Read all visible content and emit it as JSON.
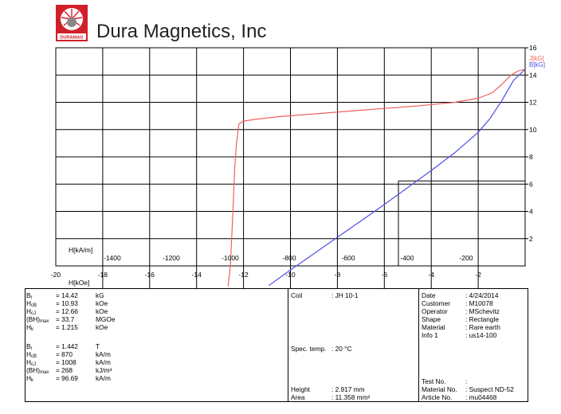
{
  "header": {
    "company": "Dura Magnetics, Inc",
    "logo_text": "DURAMAG",
    "logo_color": "#d0202a"
  },
  "chart_data": {
    "type": "line",
    "x_bottom": {
      "label": "H[kOe]",
      "range": [
        -20,
        0
      ],
      "ticks": [
        -20,
        -18,
        -16,
        -14,
        -12,
        -10,
        -8,
        -6,
        -4,
        -2
      ]
    },
    "x_top": {
      "label": "H[kA/m]",
      "ticks": [
        -1400,
        -1200,
        -1000,
        -800,
        -600,
        -400,
        -200
      ]
    },
    "y": {
      "range": [
        0,
        16
      ],
      "ticks": [
        2,
        4,
        6,
        8,
        10,
        12,
        14,
        16
      ]
    },
    "grid": true,
    "legend_position": "top-right",
    "series": [
      {
        "name": "J[kG]",
        "color": "#f06060",
        "x": [
          -12.66,
          -12.56,
          -12.45,
          -12.38,
          -12.3,
          -12.2,
          -12.0,
          -11.5,
          -10.5,
          -9.0,
          -7.5,
          -6.0,
          -4.5,
          -3.0,
          -2.0,
          -1.4,
          -1.0,
          -0.6,
          -0.3,
          0
        ],
        "y": [
          -1.5,
          0,
          4,
          7,
          9,
          10.4,
          10.62,
          10.75,
          10.95,
          11.15,
          11.35,
          11.55,
          11.75,
          12.0,
          12.3,
          12.7,
          13.3,
          14.0,
          14.3,
          14.42
        ]
      },
      {
        "name": "B[kG]",
        "color": "#5050e8",
        "x": [
          -10.93,
          -10.0,
          -9.0,
          -8.0,
          -7.0,
          -6.0,
          -5.0,
          -4.0,
          -3.0,
          -2.0,
          -1.5,
          -1.0,
          -0.5,
          0
        ],
        "y": [
          -1.45,
          -0.3,
          0.9,
          2.1,
          3.3,
          4.5,
          5.75,
          7.0,
          8.3,
          9.8,
          10.8,
          12.1,
          13.6,
          14.42
        ]
      }
    ],
    "annotations": [
      {
        "type": "bhmax-rectangle",
        "h": -5.4,
        "b": 6.23,
        "y_extent": 6.23,
        "x_extent": 0
      }
    ]
  },
  "params": {
    "kg_unit": {
      "Br": {
        "value": "= 14.42",
        "unit": "kG"
      },
      "HcB": {
        "value": "= 10.93",
        "unit": "kOe"
      },
      "HcJ": {
        "value": "= 12.66",
        "unit": "kOe"
      },
      "BHmax": {
        "value": "= 33.7",
        "unit": "MGOe"
      },
      "Hk": {
        "value": "= 1.215",
        "unit": "kOe"
      }
    },
    "si_unit": {
      "Br": {
        "value": "= 1.442",
        "unit": "T"
      },
      "HcB": {
        "value": "= 870",
        "unit": "kA/m"
      },
      "HcJ": {
        "value": "= 1008",
        "unit": "kA/m"
      },
      "BHmax": {
        "value": "= 268",
        "unit": "kJ/m³"
      },
      "Hk": {
        "value": "= 96.69",
        "unit": "kA/m"
      }
    }
  },
  "test": {
    "coil_label": "Coil",
    "coil_value": ": JH 10-1",
    "spec_temp_label": "Spec. temp.",
    "spec_temp_value": ": 20 °C",
    "height_label": "Height",
    "height_value": ": 2.917 mm",
    "area_label": "Area",
    "area_value": ": 11.358 mm²"
  },
  "info": {
    "date_label": "Date",
    "date_value": ": 4/24/2014",
    "customer_label": "Customer",
    "customer_value": ": M10078",
    "operator_label": "Operator",
    "operator_value": ": MSchevitz",
    "shape_label": "Shape",
    "shape_value": ": Rectangle",
    "material_label": "Material",
    "material_value": ": Rare earth",
    "info1_label": "Info 1",
    "info1_value": ": us14-100",
    "testno_label": "Test No.",
    "testno_value": ":",
    "materialno_label": "Material No.",
    "materialno_value": ": Suspect ND-52",
    "articleno_label": "Article No.",
    "articleno_value": ": mu04468"
  }
}
